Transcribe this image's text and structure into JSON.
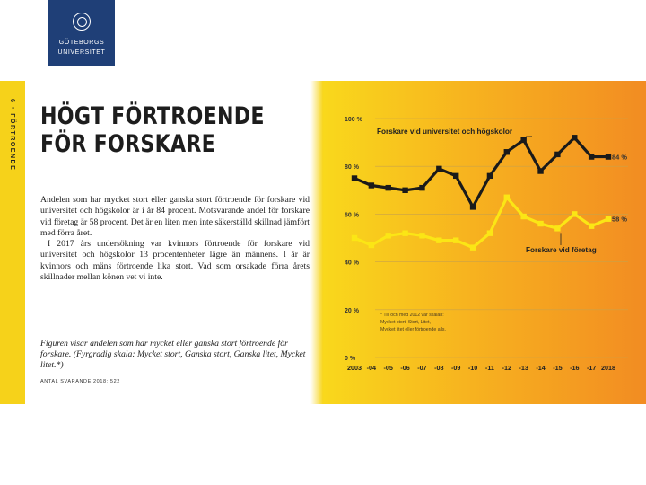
{
  "logo": {
    "line1": "GÖTEBORGS",
    "line2": "UNIVERSITET"
  },
  "page": {
    "side_label": "6 • FÖRTROENDE",
    "headline": [
      "HÖGT FÖRTROENDE",
      "FÖR FORSKARE"
    ],
    "paragraphs": [
      "Andelen som har mycket stort eller ganska stort förtroende för forskare vid universitet och högskolor är i år 84 procent. Motsvarande andel för forskare vid företag är 58 procent. Det är en liten men inte säkerställd skillnad jämfört med förra året.",
      "I 2017 års undersökning var kvinnors förtroende för forskare vid universitet och högskolor 13 procentenheter lägre än männens. I år är kvinnors och mäns förtroende lika stort. Vad som orsakade förra årets skillnader mellan könen vet vi inte."
    ],
    "caption": "Figuren visar andelen som har mycket eller ganska stort förtroende för forskare. (Fyrgradig skala: Mycket stort, Ganska stort, Ganska litet, Mycket litet.*)",
    "source": "ANTAL SVARANDE 2018: 522"
  },
  "chart_data": {
    "type": "line",
    "categories": [
      "2003",
      "-04",
      "-05",
      "-06",
      "-07",
      "-08",
      "-09",
      "-10",
      "-11",
      "-12",
      "-13",
      "-14",
      "-15",
      "-16",
      "-17",
      "2018"
    ],
    "ylim": [
      0,
      100
    ],
    "yticks": [
      "100 %",
      "80 %",
      "60 %",
      "40 %",
      "20 %",
      "0 %"
    ],
    "series": [
      {
        "name": "Forskare vid universitet och högskolor",
        "values": [
          75,
          72,
          71,
          70,
          71,
          79,
          76,
          63,
          76,
          86,
          91,
          78,
          85,
          92,
          84,
          84
        ],
        "end_label": "84 %",
        "color": "#1a1a1a"
      },
      {
        "name": "Forskare vid företag",
        "values": [
          50,
          47,
          51,
          52,
          51,
          49,
          49,
          46,
          52,
          67,
          59,
          56,
          54,
          60,
          55,
          58
        ],
        "end_label": "58 %",
        "color": "#fbe615"
      }
    ],
    "footnote": [
      "* Till och med 2012 var skalan:",
      "Mycket stort, Stort, Litet,",
      "Mycket litet eller förtroende alls."
    ]
  }
}
